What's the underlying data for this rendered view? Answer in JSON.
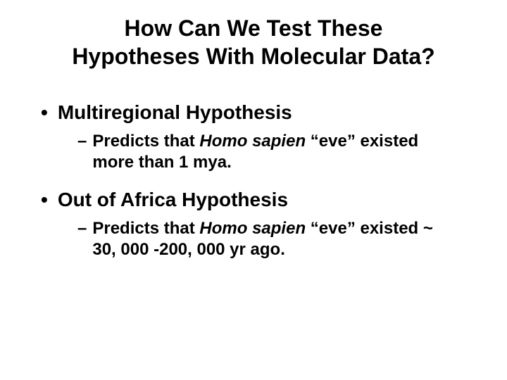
{
  "title": {
    "line1": "How Can We Test These",
    "line2": "Hypotheses With Molecular Data?",
    "fontsize": 32,
    "color": "#000000"
  },
  "bullets": {
    "level1_fontsize": 28,
    "level2_fontsize": 24,
    "color": "#000000",
    "items": [
      {
        "label": "Multiregional Hypothesis",
        "sub": {
          "prefix": "Predicts that ",
          "italic": "Homo sapien",
          "suffix": " “eve” existed more than 1 mya."
        }
      },
      {
        "label": "Out of Africa Hypothesis",
        "sub": {
          "prefix": "Predicts that ",
          "italic": "Homo sapien",
          "suffix": " “eve” existed ~ 30, 000 -200, 000 yr ago."
        }
      }
    ]
  },
  "background_color": "#ffffff"
}
